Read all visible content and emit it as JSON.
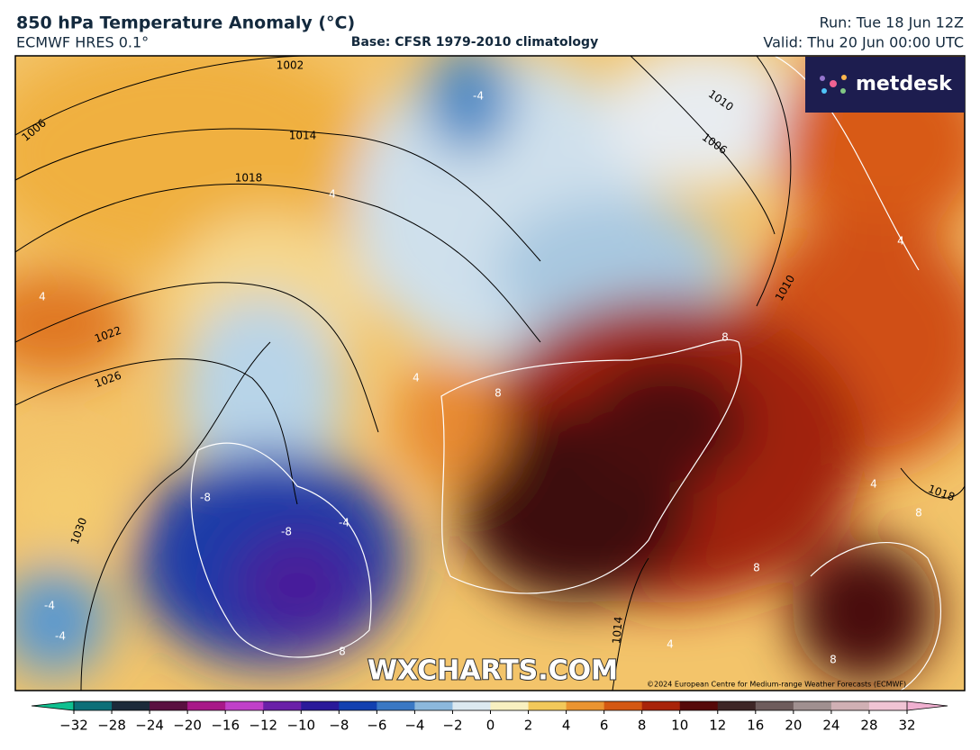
{
  "header": {
    "title": "850 hPa Temperature Anomaly (°C)",
    "model": "ECMWF HRES 0.1°",
    "base": "Base: CFSR 1979-2010 climatology",
    "run": "Run: Tue 18 Jun 12Z",
    "valid": "Valid: Thu 20 Jun 00:00 UTC"
  },
  "logo": "metdesk",
  "watermark": "WXCHARTS.COM",
  "copyright": "©2024 European Centre for Medium-range Weather Forecasts (ECMWF)",
  "isobar_labels": [
    "1002",
    "1006",
    "1014",
    "1018",
    "1022",
    "1026",
    "1030",
    "1006",
    "1010",
    "1010",
    "1014",
    "1018"
  ],
  "anomaly_labels": [
    "-4",
    "4",
    "4",
    "-8",
    "-8",
    "-4",
    "-4",
    "-4",
    "8",
    "8",
    "4",
    "8",
    "4",
    "8",
    "4",
    "8",
    "4",
    "8"
  ],
  "colorbar": {
    "ticks": [
      {
        "value": -32,
        "label": "−32"
      },
      {
        "value": -28,
        "label": "−28"
      },
      {
        "value": -24,
        "label": "−24"
      },
      {
        "value": -20,
        "label": "−20"
      },
      {
        "value": -16,
        "label": "−16"
      },
      {
        "value": -12,
        "label": "−12"
      },
      {
        "value": -10,
        "label": "−10"
      },
      {
        "value": -8,
        "label": "−8"
      },
      {
        "value": -6,
        "label": "−6"
      },
      {
        "value": -4,
        "label": "−4"
      },
      {
        "value": -2,
        "label": "−2"
      },
      0,
      2,
      4,
      6,
      8,
      10,
      12,
      16,
      20,
      24,
      28,
      32
    ],
    "colors": [
      "#0c6f78",
      "#1c2a3a",
      "#5a1040",
      "#a81888",
      "#c040c8",
      "#6a20a8",
      "#2a1a9a",
      "#1240b0",
      "#3a78c4",
      "#8cb8dc",
      "#dce9f0",
      "#f8f0c0",
      "#f2c85a",
      "#ea9430",
      "#d45812",
      "#a8240a",
      "#560a0a",
      "#3e2626",
      "#6e5c5c",
      "#a09090",
      "#d0b0b4",
      "#f0c4d4"
    ],
    "low_color": "#10c090",
    "high_color": "#f0b0d0"
  }
}
